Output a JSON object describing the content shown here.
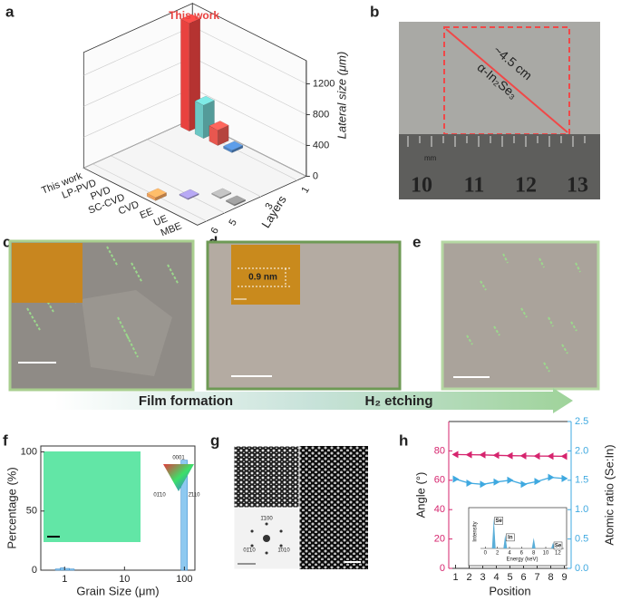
{
  "chart_data": [
    {
      "type": "bar3d",
      "panel": "a",
      "categories": [
        "This work",
        "LP-PVD",
        "PVD",
        "SC-CVD",
        "CVD",
        "EE",
        "UE",
        "MBE"
      ],
      "layers": [
        1,
        1,
        1,
        1,
        6,
        5,
        4,
        4
      ],
      "values": [
        1400,
        430,
        200,
        30,
        40,
        15,
        15,
        15
      ],
      "colors": [
        "#e8423f",
        "#6cc7c4",
        "#e8574f",
        "#4f86c6",
        "#f0a15a",
        "#9c8fd0",
        "#a8a8a8",
        "#8c8c8c"
      ],
      "annotation": "This work",
      "xlabel": "Layers",
      "zlabel": "Lateral size (μm)",
      "layer_ticks": [
        1,
        3,
        5,
        6
      ],
      "zlim": [
        0,
        1500
      ],
      "zticks": [
        0,
        400,
        800,
        1200
      ]
    },
    {
      "type": "histogram",
      "panel": "f",
      "bins": [
        0.7,
        0.85,
        1.0,
        1.2,
        1.45,
        88,
        112
      ],
      "values": [
        1,
        2,
        1.5,
        1,
        0,
        93
      ],
      "color": "#8ec9f0",
      "xlabel": "Grain Size (μm)",
      "ylabel": "Percentage (%)",
      "log_x": true,
      "xlim": [
        0.4,
        150
      ],
      "xticks": [
        1,
        10,
        100
      ],
      "ylim": [
        0,
        105
      ],
      "yticks": [
        0,
        50,
        100
      ],
      "inset_labels": [
        "0001",
        "01̄10",
        "2̄110"
      ]
    },
    {
      "type": "line",
      "panel": "h",
      "x": [
        1,
        2,
        3,
        4,
        5,
        6,
        7,
        8,
        9
      ],
      "xlim": [
        0.5,
        9.5
      ],
      "xticks": [
        1,
        2,
        3,
        4,
        5,
        6,
        7,
        8,
        9
      ],
      "xlabel": "Position",
      "ylabel": "Angle (°)",
      "y2label": "Atomic ratio (Se:In)",
      "ylim": [
        0,
        100
      ],
      "yticks": [
        0,
        20,
        40,
        60,
        80
      ],
      "y2lim": [
        0,
        2.5
      ],
      "y2ticks": [
        {
          "value": 0,
          "label": "0.0"
        },
        {
          "value": 0.5,
          "label": "0.5"
        },
        {
          "value": 1,
          "label": "1.0"
        },
        {
          "value": 1.5,
          "label": "1.5"
        },
        {
          "value": 2,
          "label": "2.0"
        },
        {
          "value": 2.5,
          "label": "2.5"
        }
      ],
      "series": [
        {
          "name": "Angle",
          "color": "#d6246e",
          "values": [
            77.5,
            77.4,
            77.3,
            77.0,
            76.7,
            76.6,
            76.5,
            76.4,
            76.3
          ]
        },
        {
          "name": "Atomic ratio",
          "color": "#3fa9e0",
          "axis": "y2",
          "values": [
            1.52,
            1.45,
            1.43,
            1.47,
            1.5,
            1.43,
            1.48,
            1.55,
            1.53
          ]
        }
      ]
    },
    {
      "type": "spectrum",
      "x": [
        1.4,
        3.3,
        8.0,
        11.2
      ],
      "values": [
        1,
        0.45,
        0.35,
        0.18
      ],
      "labels": [
        "Se",
        "In",
        null,
        "Se"
      ],
      "color": "#5aaed8",
      "xlabel": "Energy (keV)",
      "ylabel": "Intensity",
      "xlim": [
        -0.8,
        13
      ],
      "xticks": [
        0,
        2,
        4,
        6,
        8,
        10,
        12
      ],
      "ylim": [
        0,
        1.1
      ]
    }
  ],
  "panels": {
    "b": {
      "label": "b",
      "length": "~4.5 cm",
      "material": "α-In₂Se₃",
      "unit": "mm",
      "ruler": [
        "10",
        "11",
        "12",
        "13"
      ]
    },
    "c": {
      "label": "c"
    },
    "d": {
      "label": "d",
      "inset": "0.9 nm"
    },
    "e": {
      "label": "e"
    },
    "g": {
      "label": "g",
      "spots": [
        "1̄100",
        "01̄10",
        "1̄010"
      ]
    },
    "arrow": {
      "left": "Film formation",
      "right": "H₂ etching"
    }
  }
}
